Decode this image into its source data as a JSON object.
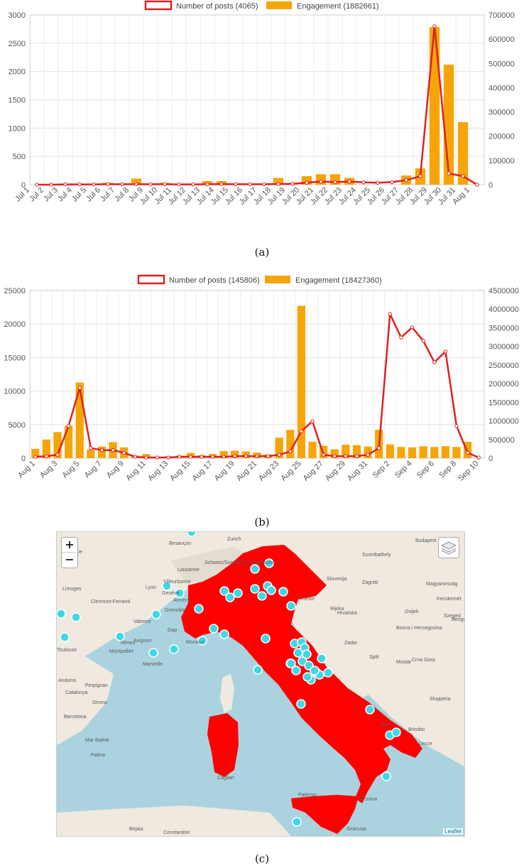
{
  "chart_data": [
    {
      "type": "bar",
      "title": "",
      "legend_placement": "top",
      "grid": true,
      "categories": [
        "Jul 1",
        "Jul 2",
        "Jul 3",
        "Jul 4",
        "Jul 5",
        "Jul 6",
        "Jul 7",
        "Jul 8",
        "Jul 9",
        "Jul 10",
        "Jul 11",
        "Jul 12",
        "Jul 13",
        "Jul 14",
        "Jul 15",
        "Jul 16",
        "Jul 17",
        "Jul 18",
        "Jul 19",
        "Jul 20",
        "Jul 21",
        "Jul 22",
        "Jul 23",
        "Jul 24",
        "Jul 25",
        "Jul 26",
        "Jul 27",
        "Jul 28",
        "Jul 29",
        "Jul 30",
        "Jul 31",
        "Aug 1"
      ],
      "y_left": {
        "ylim": [
          0,
          3000
        ],
        "ticks": [
          0,
          500,
          1000,
          1500,
          2000,
          2500,
          3000
        ]
      },
      "y_right": {
        "ylim": [
          0,
          700000
        ],
        "ticks": [
          0,
          100000,
          200000,
          300000,
          400000,
          500000,
          600000,
          700000
        ]
      },
      "series": [
        {
          "name": "Number of posts (4065)",
          "type": "line",
          "axis": "left",
          "color": "#e02020",
          "values": [
            0,
            0,
            5,
            5,
            5,
            8,
            8,
            8,
            8,
            8,
            5,
            5,
            8,
            10,
            8,
            8,
            8,
            10,
            15,
            35,
            55,
            45,
            55,
            40,
            35,
            45,
            80,
            150,
            2800,
            200,
            150,
            0
          ]
        },
        {
          "name": "Engagement (1882661)",
          "type": "bar",
          "axis": "right",
          "color": "#f5a50a",
          "values": [
            0,
            0,
            0,
            0,
            0,
            8000,
            0,
            25000,
            0,
            8000,
            0,
            0,
            15000,
            15000,
            0,
            0,
            0,
            28000,
            0,
            35000,
            43000,
            43000,
            28000,
            0,
            0,
            0,
            38000,
            67000,
            650000,
            495000,
            258000,
            0
          ]
        }
      ]
    },
    {
      "type": "bar",
      "title": "",
      "legend_placement": "top",
      "grid": true,
      "categories": [
        "Aug 1",
        "Aug 2",
        "Aug 3",
        "Aug 4",
        "Aug 5",
        "Aug 6",
        "Aug 7",
        "Aug 8",
        "Aug 9",
        "Aug 10",
        "Aug 11",
        "Aug 12",
        "Aug 13",
        "Aug 14",
        "Aug 15",
        "Aug 16",
        "Aug 17",
        "Aug 18",
        "Aug 19",
        "Aug 20",
        "Aug 21",
        "Aug 22",
        "Aug 23",
        "Aug 24",
        "Aug 25",
        "Aug 26",
        "Aug 27",
        "Aug 28",
        "Aug 29",
        "Aug 30",
        "Aug 31",
        "Sep 1",
        "Sep 2",
        "Sep 3",
        "Sep 4",
        "Sep 5",
        "Sep 6",
        "Sep 7",
        "Sep 8",
        "Sep 9",
        "Sep 10"
      ],
      "tick_labels_shown": [
        "Aug 1",
        "Aug 3",
        "Aug 5",
        "Aug 7",
        "Aug 9",
        "Aug 11",
        "Aug 13",
        "Aug 15",
        "Aug 17",
        "Aug 19",
        "Aug 21",
        "Aug 23",
        "Aug 25",
        "Aug 27",
        "Aug 29",
        "Aug 31",
        "Sep 2",
        "Sep 4",
        "Sep 6",
        "Sep 8",
        "Sep 10"
      ],
      "y_left": {
        "ylim": [
          0,
          25000
        ],
        "ticks": [
          0,
          5000,
          10000,
          15000,
          20000,
          25000
        ]
      },
      "y_right": {
        "ylim": [
          0,
          4500000
        ],
        "ticks": [
          0,
          500000,
          1000000,
          1500000,
          2000000,
          2500000,
          3000000,
          3500000,
          4000000,
          4500000
        ]
      },
      "series": [
        {
          "name": "Number of posts (145806)",
          "type": "line",
          "axis": "left",
          "color": "#e02020",
          "values": [
            200,
            300,
            500,
            4800,
            10500,
            1500,
            1200,
            1200,
            800,
            200,
            100,
            100,
            100,
            200,
            200,
            200,
            200,
            200,
            300,
            300,
            300,
            300,
            500,
            1000,
            4000,
            5500,
            500,
            300,
            300,
            300,
            500,
            1500,
            21500,
            18000,
            19500,
            17500,
            14300,
            15900,
            4800,
            800,
            100
          ]
        },
        {
          "name": "Engagement (18427360)",
          "type": "bar",
          "axis": "right",
          "color": "#f5a50a",
          "values": [
            250000,
            500000,
            700000,
            870000,
            2030000,
            230000,
            310000,
            430000,
            290000,
            70000,
            110000,
            20000,
            50000,
            70000,
            140000,
            80000,
            110000,
            190000,
            200000,
            180000,
            150000,
            100000,
            550000,
            760000,
            4090000,
            440000,
            330000,
            240000,
            360000,
            350000,
            310000,
            760000,
            370000,
            300000,
            290000,
            320000,
            300000,
            320000,
            300000,
            440000,
            0
          ]
        }
      ]
    }
  ],
  "captions": {
    "a": "(a)",
    "b": "(b)",
    "c": "(c)"
  },
  "map": {
    "zoom_in": "+",
    "zoom_out": "−",
    "layers_icon": "layers-icon",
    "attribution": "Leaflet",
    "labels": [
      "France",
      "Schweiz/Suisse/Svizzera/Svizra",
      "Magyarország",
      "Slovenija",
      "Zagreb",
      "Hrvatska",
      "Bosna i Hercegovina",
      "Crna Gora",
      "Shqipëria",
      "Barcelona",
      "Andorra",
      "Marseille",
      "Montpellier",
      "Lyon",
      "Palermo",
      "Bari",
      "Trieste",
      "Zurich",
      "Budapest",
      "Beograd",
      "Constantine",
      "Palma",
      "Grenoble",
      "Valence",
      "Limoges",
      "Toulouse",
      "Perpignan",
      "Girona",
      "Clermont-Ferrand",
      "Villeurbanne",
      "Lausanne",
      "Besançon",
      "Szombathely",
      "Kecskemét",
      "Szeged",
      "Osijek",
      "Rijeka",
      "Zadar",
      "Split",
      "Mostar",
      "Lecce",
      "Brindisi",
      "Cagliari",
      "Messina",
      "Siracusa",
      "Bejaia",
      "Catalunya",
      "Mar Balear",
      "Monaco",
      "Avignon",
      "Nîmes",
      "Genève",
      "Annecy",
      "Gap"
    ],
    "colors": {
      "sea": "#aad3df",
      "land": "#efe9df",
      "country": "#ff0000",
      "marker": "#3dd8e8"
    }
  }
}
